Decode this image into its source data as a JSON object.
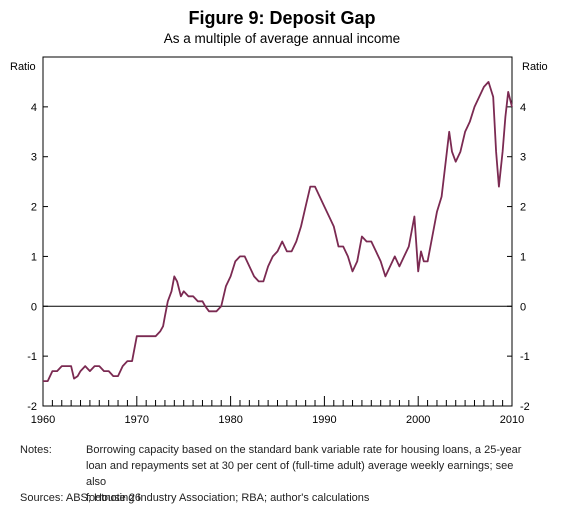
{
  "chart_data": {
    "type": "line",
    "title": "Figure 9: Deposit Gap",
    "subtitle": "As a multiple of average annual income",
    "ylabel_left": "Ratio",
    "ylabel_right": "Ratio",
    "xlim": [
      1960,
      2010
    ],
    "ylim": [
      -2,
      5
    ],
    "yticks": [
      -2,
      -1,
      0,
      1,
      2,
      3,
      4
    ],
    "xticks": [
      1960,
      1970,
      1980,
      1990,
      2000,
      2010
    ],
    "grid": false,
    "line_color": "#7b2a52",
    "series": [
      {
        "x": [
          1960.0,
          1960.5,
          1961.0,
          1961.5,
          1962.0,
          1962.5,
          1963.0,
          1963.3,
          1963.7,
          1964.0,
          1964.5,
          1965.0,
          1965.5,
          1966.0,
          1966.5,
          1967.0,
          1967.5,
          1968.0,
          1968.5,
          1969.0,
          1969.5,
          1970.0,
          1970.5,
          1971.0,
          1971.5,
          1972.0,
          1972.5,
          1972.8,
          1973.0,
          1973.3,
          1973.7,
          1974.0,
          1974.3,
          1974.7,
          1975.0,
          1975.5,
          1976.0,
          1976.5,
          1977.0,
          1977.3,
          1977.7,
          1978.0,
          1978.5,
          1979.0,
          1979.5,
          1980.0,
          1980.5,
          1981.0,
          1981.5,
          1982.0,
          1982.5,
          1983.0,
          1983.5,
          1984.0,
          1984.5,
          1985.0,
          1985.5,
          1986.0,
          1986.5,
          1987.0,
          1987.5,
          1988.0,
          1988.5,
          1989.0,
          1989.5,
          1990.0,
          1990.5,
          1991.0,
          1991.5,
          1992.0,
          1992.5,
          1993.0,
          1993.5,
          1994.0,
          1994.5,
          1995.0,
          1995.5,
          1996.0,
          1996.5,
          1997.0,
          1997.5,
          1998.0,
          1998.5,
          1999.0,
          1999.3,
          1999.6,
          2000.0,
          2000.3,
          2000.6,
          2001.0,
          2001.5,
          2002.0,
          2002.5,
          2003.0,
          2003.3,
          2003.6,
          2004.0,
          2004.5,
          2005.0,
          2005.5,
          2006.0,
          2006.5,
          2007.0,
          2007.5,
          2008.0,
          2008.3,
          2008.6,
          2009.0,
          2009.3,
          2009.6,
          2010.0
        ],
        "values": [
          -1.5,
          -1.5,
          -1.3,
          -1.3,
          -1.2,
          -1.2,
          -1.2,
          -1.45,
          -1.4,
          -1.3,
          -1.2,
          -1.3,
          -1.2,
          -1.2,
          -1.3,
          -1.3,
          -1.4,
          -1.4,
          -1.2,
          -1.1,
          -1.1,
          -0.6,
          -0.6,
          -0.6,
          -0.6,
          -0.6,
          -0.5,
          -0.4,
          -0.2,
          0.1,
          0.3,
          0.6,
          0.5,
          0.2,
          0.3,
          0.2,
          0.2,
          0.1,
          0.1,
          0.0,
          -0.1,
          -0.1,
          -0.1,
          0.0,
          0.4,
          0.6,
          0.9,
          1.0,
          1.0,
          0.8,
          0.6,
          0.5,
          0.5,
          0.8,
          1.0,
          1.1,
          1.3,
          1.1,
          1.1,
          1.3,
          1.6,
          2.0,
          2.4,
          2.4,
          2.2,
          2.0,
          1.8,
          1.6,
          1.2,
          1.2,
          1.0,
          0.7,
          0.9,
          1.4,
          1.3,
          1.3,
          1.1,
          0.9,
          0.6,
          0.8,
          1.0,
          0.8,
          1.0,
          1.2,
          1.5,
          1.8,
          0.7,
          1.1,
          0.9,
          0.9,
          1.4,
          1.9,
          2.2,
          3.0,
          3.5,
          3.1,
          2.9,
          3.1,
          3.5,
          3.7,
          4.0,
          4.2,
          4.4,
          4.5,
          4.2,
          3.1,
          2.4,
          3.1,
          3.8,
          4.3,
          4.0
        ]
      }
    ]
  },
  "notes": {
    "label": "Notes:",
    "lines": [
      "Borrowing capacity based on the standard bank variable rate for housing loans, a 25-year",
      "loan and repayments set at 30 per cent of (full-time adult) average weekly earnings; see also",
      "footnote 26"
    ]
  },
  "sources": "Sources:  ABS; Housing Industry Association; RBA; author's calculations"
}
